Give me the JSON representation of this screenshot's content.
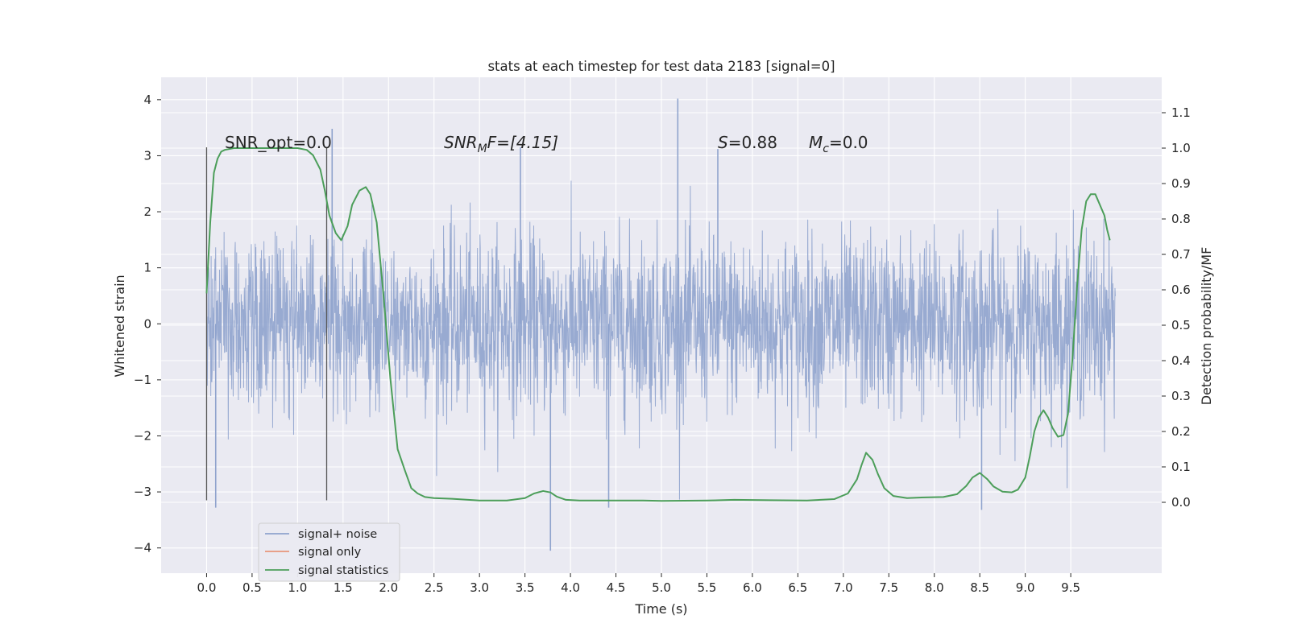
{
  "chart_data": {
    "type": "line",
    "title": "stats at each timestep for test data 2183 [signal=0]",
    "xlabel": "Time (s)",
    "ylabel_left": "Whitened strain",
    "ylabel_right": "Detection probability/MF",
    "xlim": [
      -0.5,
      10.5
    ],
    "ylim_left": [
      -4.45,
      4.4
    ],
    "ylim_right": [
      -0.2,
      1.2
    ],
    "x_ticks": [
      "0.0",
      "0.5",
      "1.0",
      "1.5",
      "2.0",
      "2.5",
      "3.0",
      "3.5",
      "4.0",
      "4.5",
      "5.0",
      "5.5",
      "6.0",
      "6.5",
      "7.0",
      "7.5",
      "8.0",
      "8.5",
      "9.0",
      "9.5"
    ],
    "x_tick_values": [
      0.0,
      0.5,
      1.0,
      1.5,
      2.0,
      2.5,
      3.0,
      3.5,
      4.0,
      4.5,
      5.0,
      5.5,
      6.0,
      6.5,
      7.0,
      7.5,
      8.0,
      8.5,
      9.0,
      9.5
    ],
    "y_ticks_left": [
      "4",
      "3",
      "2",
      "1",
      "0",
      "−1",
      "−2",
      "−3",
      "−4"
    ],
    "y_tick_values_left": [
      4,
      3,
      2,
      1,
      0,
      -1,
      -2,
      -3,
      -4
    ],
    "y_ticks_right": [
      "1.1",
      "1.0",
      "0.9",
      "0.8",
      "0.7",
      "0.6",
      "0.5",
      "0.4",
      "0.3",
      "0.2",
      "0.1",
      "0.0"
    ],
    "y_tick_values_right": [
      1.1,
      1.0,
      0.9,
      0.8,
      0.7,
      0.6,
      0.5,
      0.4,
      0.3,
      0.2,
      0.1,
      0.0
    ],
    "grid": true,
    "legend_position": "lower-left",
    "annotations": {
      "snr_opt": "SNR_opt=0.0",
      "snr_mf_base": "SNR",
      "snr_mf_sub": "M",
      "snr_mf_rest": "F=[4.15]",
      "s_label": "S",
      "s_value": "=0.88",
      "mc_base": "M",
      "mc_sub": "c",
      "mc_value": "=0.0"
    },
    "vertical_markers_x": [
      0.0,
      1.32
    ],
    "vertical_markers_range": [
      -3.15,
      3.15
    ],
    "series": [
      {
        "name": "signal+ noise",
        "axis": "left",
        "color": "#8fa3cd",
        "t_range": [
          0.0,
          9.99
        ],
        "envelope_note": "dense noise, approx amplitude 1.3 with spikes up to 4.0",
        "spikes": [
          {
            "x": 5.18,
            "y": 4.02
          },
          {
            "x": 3.78,
            "y": -4.05
          },
          {
            "x": 1.38,
            "y": 3.48
          },
          {
            "x": 0.1,
            "y": -3.28
          },
          {
            "x": 8.52,
            "y": -3.32
          },
          {
            "x": 4.42,
            "y": -3.28
          },
          {
            "x": 3.45,
            "y": 3.15
          },
          {
            "x": 5.62,
            "y": 3.12
          }
        ]
      },
      {
        "name": "signal only",
        "axis": "left",
        "color": "#e8967a",
        "values": []
      },
      {
        "name": "signal statistics",
        "axis": "right",
        "color": "#4c9e5a",
        "x": [
          0.0,
          0.04,
          0.08,
          0.12,
          0.16,
          0.2,
          0.3,
          0.5,
          0.7,
          0.9,
          1.0,
          1.1,
          1.17,
          1.25,
          1.3,
          1.35,
          1.42,
          1.48,
          1.55,
          1.6,
          1.68,
          1.75,
          1.8,
          1.87,
          1.95,
          2.02,
          2.1,
          2.18,
          2.25,
          2.32,
          2.4,
          2.5,
          2.7,
          3.0,
          3.3,
          3.5,
          3.6,
          3.7,
          3.78,
          3.85,
          3.95,
          4.1,
          4.4,
          4.8,
          5.0,
          5.5,
          5.8,
          6.2,
          6.6,
          6.9,
          7.05,
          7.15,
          7.2,
          7.25,
          7.32,
          7.38,
          7.45,
          7.55,
          7.7,
          7.9,
          8.1,
          8.25,
          8.35,
          8.42,
          8.5,
          8.58,
          8.65,
          8.75,
          8.85,
          8.92,
          9.0,
          9.05,
          9.1,
          9.15,
          9.2,
          9.25,
          9.3,
          9.36,
          9.42,
          9.47,
          9.52,
          9.57,
          9.62,
          9.67,
          9.72,
          9.77,
          9.82,
          9.87,
          9.9,
          9.93
        ],
        "values": [
          0.59,
          0.79,
          0.93,
          0.97,
          0.99,
          0.995,
          1.0,
          1.0,
          1.0,
          1.0,
          1.0,
          0.995,
          0.98,
          0.94,
          0.88,
          0.81,
          0.76,
          0.74,
          0.78,
          0.84,
          0.88,
          0.89,
          0.87,
          0.79,
          0.57,
          0.35,
          0.15,
          0.09,
          0.04,
          0.025,
          0.015,
          0.012,
          0.01,
          0.005,
          0.005,
          0.012,
          0.025,
          0.032,
          0.028,
          0.016,
          0.007,
          0.005,
          0.005,
          0.005,
          0.004,
          0.005,
          0.007,
          0.006,
          0.005,
          0.009,
          0.025,
          0.065,
          0.105,
          0.14,
          0.12,
          0.08,
          0.04,
          0.018,
          0.012,
          0.014,
          0.015,
          0.023,
          0.046,
          0.07,
          0.083,
          0.066,
          0.045,
          0.03,
          0.028,
          0.036,
          0.07,
          0.13,
          0.2,
          0.24,
          0.26,
          0.24,
          0.21,
          0.185,
          0.19,
          0.25,
          0.41,
          0.61,
          0.77,
          0.85,
          0.87,
          0.87,
          0.84,
          0.81,
          0.77,
          0.74
        ]
      }
    ]
  }
}
